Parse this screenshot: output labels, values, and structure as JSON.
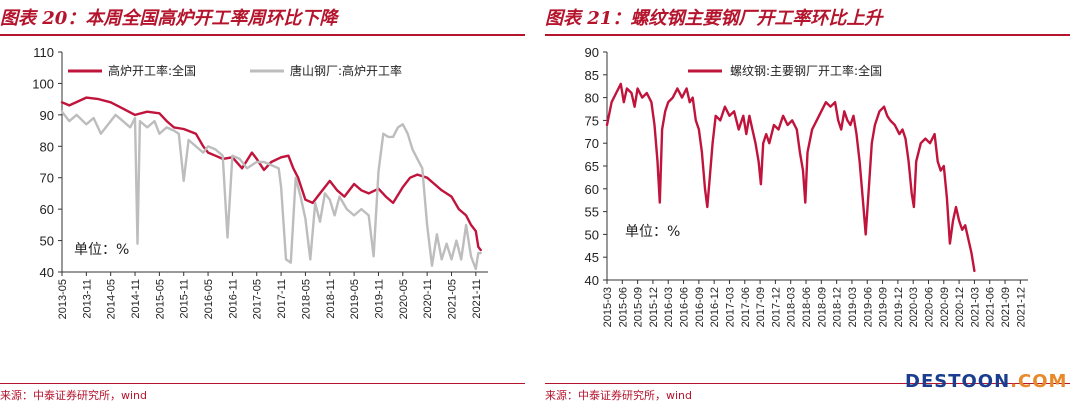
{
  "charts": [
    {
      "title": "图表 20：本周全国高炉开工率周环比下降",
      "source": "来源：中泰证券研究所，wind",
      "unit_note": "单位：%"
    },
    {
      "title": "图表 21：螺纹钢主要钢厂开工率环比上升",
      "source": "来源：中泰证券研究所，wind",
      "unit_note": "单位：%"
    }
  ],
  "chart_data": [
    {
      "type": "line",
      "ylim": [
        40,
        110
      ],
      "yticks": [
        "40",
        "50",
        "60",
        "70",
        "80",
        "90",
        "100",
        "110"
      ],
      "xticks": [
        "2013-05",
        "2013-11",
        "2014-05",
        "2014-11",
        "2015-05",
        "2015-11",
        "2016-05",
        "2016-11",
        "2017-05",
        "2017-11",
        "2018-05",
        "2018-11",
        "2019-05",
        "2019-11",
        "2020-05",
        "2020-11",
        "2021-05",
        "2021-11"
      ],
      "legend": "top-left",
      "series": [
        {
          "name": "高炉开工率:全国",
          "color": "#c0143c",
          "points": [
            [
              0,
              94
            ],
            [
              0.3,
              93
            ],
            [
              1,
              95.5
            ],
            [
              1.5,
              95
            ],
            [
              2,
              94
            ],
            [
              2.5,
              92
            ],
            [
              3,
              90
            ],
            [
              3.5,
              91
            ],
            [
              4,
              90.5
            ],
            [
              4.3,
              88
            ],
            [
              4.6,
              86
            ],
            [
              5,
              85.5
            ],
            [
              5.5,
              84
            ],
            [
              5.8,
              80
            ],
            [
              6,
              78
            ],
            [
              6.3,
              77
            ],
            [
              6.6,
              76
            ],
            [
              7,
              76.5
            ],
            [
              7.4,
              73
            ],
            [
              7.8,
              78
            ],
            [
              8,
              76
            ],
            [
              8.3,
              72.5
            ],
            [
              8.6,
              75
            ],
            [
              9,
              76.5
            ],
            [
              9.3,
              77
            ],
            [
              9.5,
              73
            ],
            [
              9.7,
              70
            ],
            [
              10,
              63
            ],
            [
              10.3,
              62
            ],
            [
              10.6,
              65
            ],
            [
              11,
              69
            ],
            [
              11.3,
              66
            ],
            [
              11.6,
              64
            ],
            [
              12,
              68
            ],
            [
              12.3,
              66
            ],
            [
              12.6,
              65
            ],
            [
              13,
              66.5
            ],
            [
              13.3,
              64
            ],
            [
              13.6,
              62
            ],
            [
              14,
              67
            ],
            [
              14.3,
              70
            ],
            [
              14.6,
              71
            ],
            [
              15,
              70
            ],
            [
              15.3,
              68
            ],
            [
              15.6,
              66
            ],
            [
              16,
              64
            ],
            [
              16.3,
              60
            ],
            [
              16.6,
              58
            ],
            [
              16.8,
              55
            ],
            [
              17,
              53
            ],
            [
              17.1,
              48
            ],
            [
              17.2,
              47
            ]
          ]
        },
        {
          "name": "唐山钢厂:高炉开工率",
          "color": "#bdbdbd",
          "points": [
            [
              0,
              91
            ],
            [
              0.3,
              88
            ],
            [
              0.6,
              90
            ],
            [
              1,
              87
            ],
            [
              1.3,
              89
            ],
            [
              1.6,
              84
            ],
            [
              2,
              88
            ],
            [
              2.2,
              90
            ],
            [
              2.5,
              88
            ],
            [
              2.8,
              86
            ],
            [
              3,
              89
            ],
            [
              3.1,
              49
            ],
            [
              3.2,
              88
            ],
            [
              3.5,
              86
            ],
            [
              3.8,
              88
            ],
            [
              4,
              84
            ],
            [
              4.3,
              86
            ],
            [
              4.6,
              85
            ],
            [
              4.8,
              84
            ],
            [
              5,
              69
            ],
            [
              5.2,
              82
            ],
            [
              5.5,
              80
            ],
            [
              5.8,
              78
            ],
            [
              6,
              80
            ],
            [
              6.3,
              79
            ],
            [
              6.6,
              77
            ],
            [
              6.8,
              51
            ],
            [
              7,
              77
            ],
            [
              7.3,
              76
            ],
            [
              7.6,
              73
            ],
            [
              8,
              75
            ],
            [
              8.3,
              75
            ],
            [
              8.6,
              74
            ],
            [
              8.9,
              73
            ],
            [
              9,
              67
            ],
            [
              9.2,
              44
            ],
            [
              9.4,
              43
            ],
            [
              9.6,
              70
            ],
            [
              9.8,
              64
            ],
            [
              10,
              57
            ],
            [
              10.2,
              44
            ],
            [
              10.4,
              62
            ],
            [
              10.6,
              56
            ],
            [
              10.8,
              65
            ],
            [
              11,
              63
            ],
            [
              11.2,
              58
            ],
            [
              11.4,
              64
            ],
            [
              11.7,
              60
            ],
            [
              12,
              58
            ],
            [
              12.3,
              60
            ],
            [
              12.6,
              58
            ],
            [
              12.8,
              45
            ],
            [
              13,
              72
            ],
            [
              13.2,
              84
            ],
            [
              13.4,
              83
            ],
            [
              13.6,
              83
            ],
            [
              13.8,
              86
            ],
            [
              14,
              87
            ],
            [
              14.2,
              84
            ],
            [
              14.4,
              79
            ],
            [
              14.6,
              76
            ],
            [
              14.8,
              73
            ],
            [
              15,
              55
            ],
            [
              15.2,
              42
            ],
            [
              15.4,
              52
            ],
            [
              15.6,
              44
            ],
            [
              15.8,
              49
            ],
            [
              16,
              44
            ],
            [
              16.2,
              50
            ],
            [
              16.4,
              44
            ],
            [
              16.6,
              55
            ],
            [
              16.8,
              45
            ],
            [
              17,
              41
            ],
            [
              17.1,
              46
            ],
            [
              17.2,
              46
            ]
          ]
        }
      ]
    },
    {
      "type": "line",
      "ylim": [
        40,
        90
      ],
      "yticks": [
        "40",
        "45",
        "50",
        "55",
        "60",
        "65",
        "70",
        "75",
        "80",
        "85",
        "90"
      ],
      "xticks": [
        "2015-03",
        "2015-06",
        "2015-09",
        "2015-12",
        "2016-03",
        "2016-06",
        "2016-09",
        "2016-12",
        "2017-03",
        "2017-06",
        "2017-09",
        "2017-12",
        "2018-03",
        "2018-06",
        "2018-09",
        "2018-12",
        "2019-03",
        "2019-06",
        "2019-09",
        "2019-12",
        "2020-03",
        "2020-06",
        "2020-09",
        "2020-12",
        "2021-03",
        "2021-06",
        "2021-09",
        "2021-12"
      ],
      "legend": "top-center",
      "series": [
        {
          "name": "螺纹钢:主要钢厂开工率:全国",
          "color": "#c0143c",
          "points": [
            [
              0,
              74
            ],
            [
              0.3,
              79
            ],
            [
              0.6,
              81
            ],
            [
              0.9,
              83
            ],
            [
              1.1,
              79
            ],
            [
              1.3,
              82
            ],
            [
              1.6,
              81
            ],
            [
              1.8,
              78
            ],
            [
              2,
              82
            ],
            [
              2.3,
              80
            ],
            [
              2.6,
              81
            ],
            [
              2.9,
              79
            ],
            [
              3.1,
              74
            ],
            [
              3.3,
              66
            ],
            [
              3.45,
              57
            ],
            [
              3.6,
              73
            ],
            [
              3.8,
              77
            ],
            [
              4,
              79
            ],
            [
              4.3,
              80
            ],
            [
              4.6,
              82
            ],
            [
              4.9,
              80
            ],
            [
              5.2,
              82
            ],
            [
              5.4,
              79
            ],
            [
              5.6,
              80
            ],
            [
              5.8,
              75
            ],
            [
              6,
              73
            ],
            [
              6.2,
              68
            ],
            [
              6.4,
              60
            ],
            [
              6.55,
              56
            ],
            [
              6.7,
              62
            ],
            [
              6.9,
              70
            ],
            [
              7.1,
              76
            ],
            [
              7.4,
              75
            ],
            [
              7.7,
              78
            ],
            [
              8,
              76
            ],
            [
              8.3,
              77
            ],
            [
              8.6,
              73
            ],
            [
              8.9,
              76
            ],
            [
              9.1,
              72
            ],
            [
              9.3,
              76
            ],
            [
              9.5,
              73
            ],
            [
              9.7,
              70
            ],
            [
              9.9,
              66
            ],
            [
              10.05,
              61
            ],
            [
              10.2,
              70
            ],
            [
              10.4,
              72
            ],
            [
              10.6,
              70
            ],
            [
              10.9,
              74
            ],
            [
              11.2,
              73
            ],
            [
              11.5,
              76
            ],
            [
              11.8,
              74
            ],
            [
              12.1,
              75
            ],
            [
              12.4,
              73
            ],
            [
              12.6,
              68
            ],
            [
              12.8,
              64
            ],
            [
              12.95,
              57
            ],
            [
              13.1,
              68
            ],
            [
              13.4,
              73
            ],
            [
              13.7,
              75
            ],
            [
              14,
              77
            ],
            [
              14.3,
              79
            ],
            [
              14.6,
              78
            ],
            [
              14.9,
              79
            ],
            [
              15.1,
              75
            ],
            [
              15.3,
              73
            ],
            [
              15.5,
              77
            ],
            [
              15.7,
              75
            ],
            [
              15.9,
              74
            ],
            [
              16.1,
              76
            ],
            [
              16.3,
              72
            ],
            [
              16.5,
              66
            ],
            [
              16.7,
              58
            ],
            [
              16.9,
              50
            ],
            [
              17.1,
              60
            ],
            [
              17.3,
              70
            ],
            [
              17.5,
              74
            ],
            [
              17.8,
              77
            ],
            [
              18.1,
              78
            ],
            [
              18.3,
              76
            ],
            [
              18.5,
              75
            ],
            [
              18.8,
              74
            ],
            [
              19.1,
              72
            ],
            [
              19.3,
              73
            ],
            [
              19.5,
              71
            ],
            [
              19.7,
              66
            ],
            [
              19.9,
              59
            ],
            [
              20.05,
              56
            ],
            [
              20.2,
              66
            ],
            [
              20.5,
              70
            ],
            [
              20.8,
              71
            ],
            [
              21.1,
              70
            ],
            [
              21.4,
              72
            ],
            [
              21.6,
              66
            ],
            [
              21.8,
              64
            ],
            [
              22,
              65
            ],
            [
              22.2,
              58
            ],
            [
              22.4,
              48
            ],
            [
              22.6,
              53
            ],
            [
              22.8,
              56
            ],
            [
              23,
              53
            ],
            [
              23.2,
              51
            ],
            [
              23.4,
              52
            ],
            [
              23.6,
              49
            ],
            [
              23.8,
              46
            ],
            [
              24,
              42
            ]
          ]
        }
      ]
    }
  ]
}
